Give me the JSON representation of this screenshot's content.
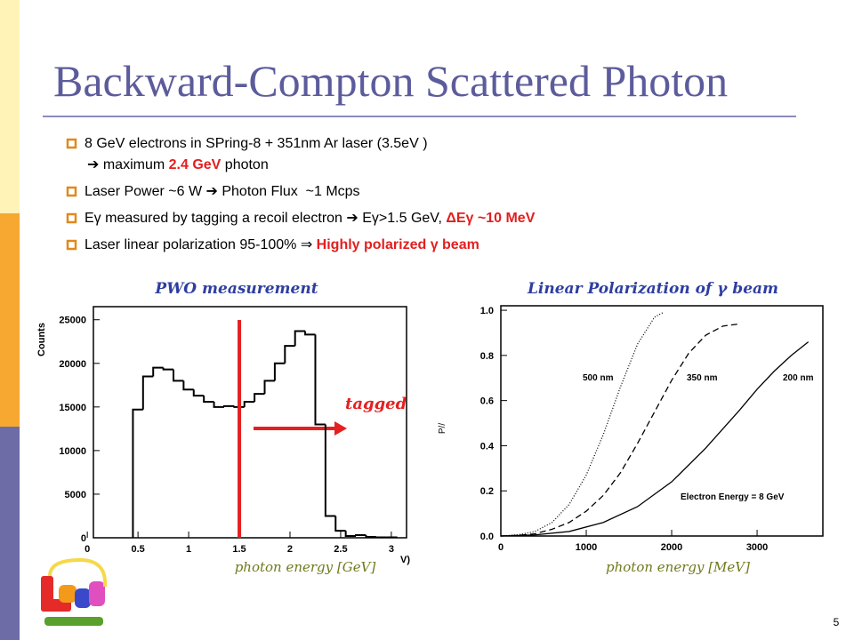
{
  "title": "Backward-Compton Scattered Photon",
  "bullets": [
    {
      "lines": [
        [
          {
            "text": "8 GeV electrons in SPring-8 + 351nm Ar laser (3.5eV )"
          }
        ],
        [
          {
            "text": "➔ maximum "
          },
          {
            "text": "2.4 GeV",
            "highlight": true
          },
          {
            "text": " photon"
          }
        ]
      ]
    },
    {
      "lines": [
        [
          {
            "text": "Laser Power ~6 W ➔ Photon Flux  ~1 Mcps"
          }
        ]
      ]
    },
    {
      "lines": [
        [
          {
            "text": "Eγ measured by tagging a recoil electron ➔ Eγ>1.5 GeV, "
          },
          {
            "text": "ΔEγ ~10 MeV",
            "highlight": true
          }
        ]
      ]
    },
    {
      "lines": [
        [
          {
            "text": "Laser linear polarization 95-100% ⇒ "
          },
          {
            "text": "Highly polarized γ beam",
            "highlight": true
          }
        ]
      ]
    }
  ],
  "page_number": "5",
  "chart_data": [
    {
      "type": "histogram",
      "title": "PWO measurement",
      "ylabel": "Counts",
      "xlabel": "photon energy [GeV]",
      "axis_fragment": "V)",
      "annotation": "tagged",
      "tag_threshold": 1.5,
      "bins": [
        0.45,
        0.55,
        0.65,
        0.75,
        0.85,
        0.95,
        1.05,
        1.15,
        1.25,
        1.35,
        1.45,
        1.55,
        1.65,
        1.75,
        1.85,
        1.95,
        2.05,
        2.15,
        2.25,
        2.35,
        2.45,
        2.55,
        2.65,
        2.75,
        2.85,
        2.95,
        3.05
      ],
      "values": [
        14700,
        18500,
        19500,
        19300,
        18000,
        17000,
        16300,
        15600,
        15000,
        15100,
        15000,
        15600,
        16500,
        18000,
        20000,
        22000,
        23700,
        23300,
        13000,
        2500,
        800,
        200,
        300,
        100,
        50,
        50
      ],
      "xlim": [
        0.06,
        3.15
      ],
      "ylim": [
        0,
        26500
      ],
      "xticks": [
        0,
        0.5,
        1,
        1.5,
        2,
        2.5,
        3
      ],
      "yticks": [
        0,
        5000,
        10000,
        15000,
        20000,
        25000
      ],
      "color": "#000000"
    },
    {
      "type": "line",
      "title": "Linear Polarization of γ beam",
      "ylabel": "P//",
      "xlabel": "photon energy [MeV]",
      "annotation": "Electron Energy = 8 GeV",
      "xlim": [
        0,
        3770
      ],
      "ylim": [
        0,
        1.02
      ],
      "xticks": [
        0,
        1000,
        2000,
        3000
      ],
      "yticks": [
        {
          "value": 0,
          "label": "0.0"
        },
        0.2,
        0.4,
        0.6,
        0.8,
        {
          "value": 1,
          "label": "1.0"
        }
      ],
      "series": [
        {
          "name": "500 nm",
          "color": "#000000",
          "dash": "1,2",
          "x": [
            0,
            200,
            400,
            600,
            800,
            1000,
            1200,
            1400,
            1600,
            1800,
            1900
          ],
          "values": [
            0,
            0.005,
            0.02,
            0.06,
            0.14,
            0.27,
            0.45,
            0.66,
            0.85,
            0.97,
            0.99
          ]
        },
        {
          "name": "350 nm",
          "color": "#000000",
          "dash": "7,4",
          "x": [
            0,
            200,
            400,
            600,
            800,
            1000,
            1200,
            1400,
            1600,
            1800,
            2000,
            2200,
            2400,
            2600,
            2800
          ],
          "values": [
            0,
            0.003,
            0.01,
            0.03,
            0.06,
            0.11,
            0.18,
            0.28,
            0.41,
            0.55,
            0.69,
            0.81,
            0.89,
            0.93,
            0.94
          ]
        },
        {
          "name": "200 nm",
          "color": "#000000",
          "dash": "none",
          "x": [
            0,
            400,
            800,
            1200,
            1600,
            2000,
            2400,
            2800,
            3000,
            3200,
            3400,
            3600
          ],
          "values": [
            0,
            0.005,
            0.02,
            0.06,
            0.13,
            0.24,
            0.39,
            0.56,
            0.65,
            0.73,
            0.8,
            0.86
          ]
        }
      ]
    }
  ]
}
